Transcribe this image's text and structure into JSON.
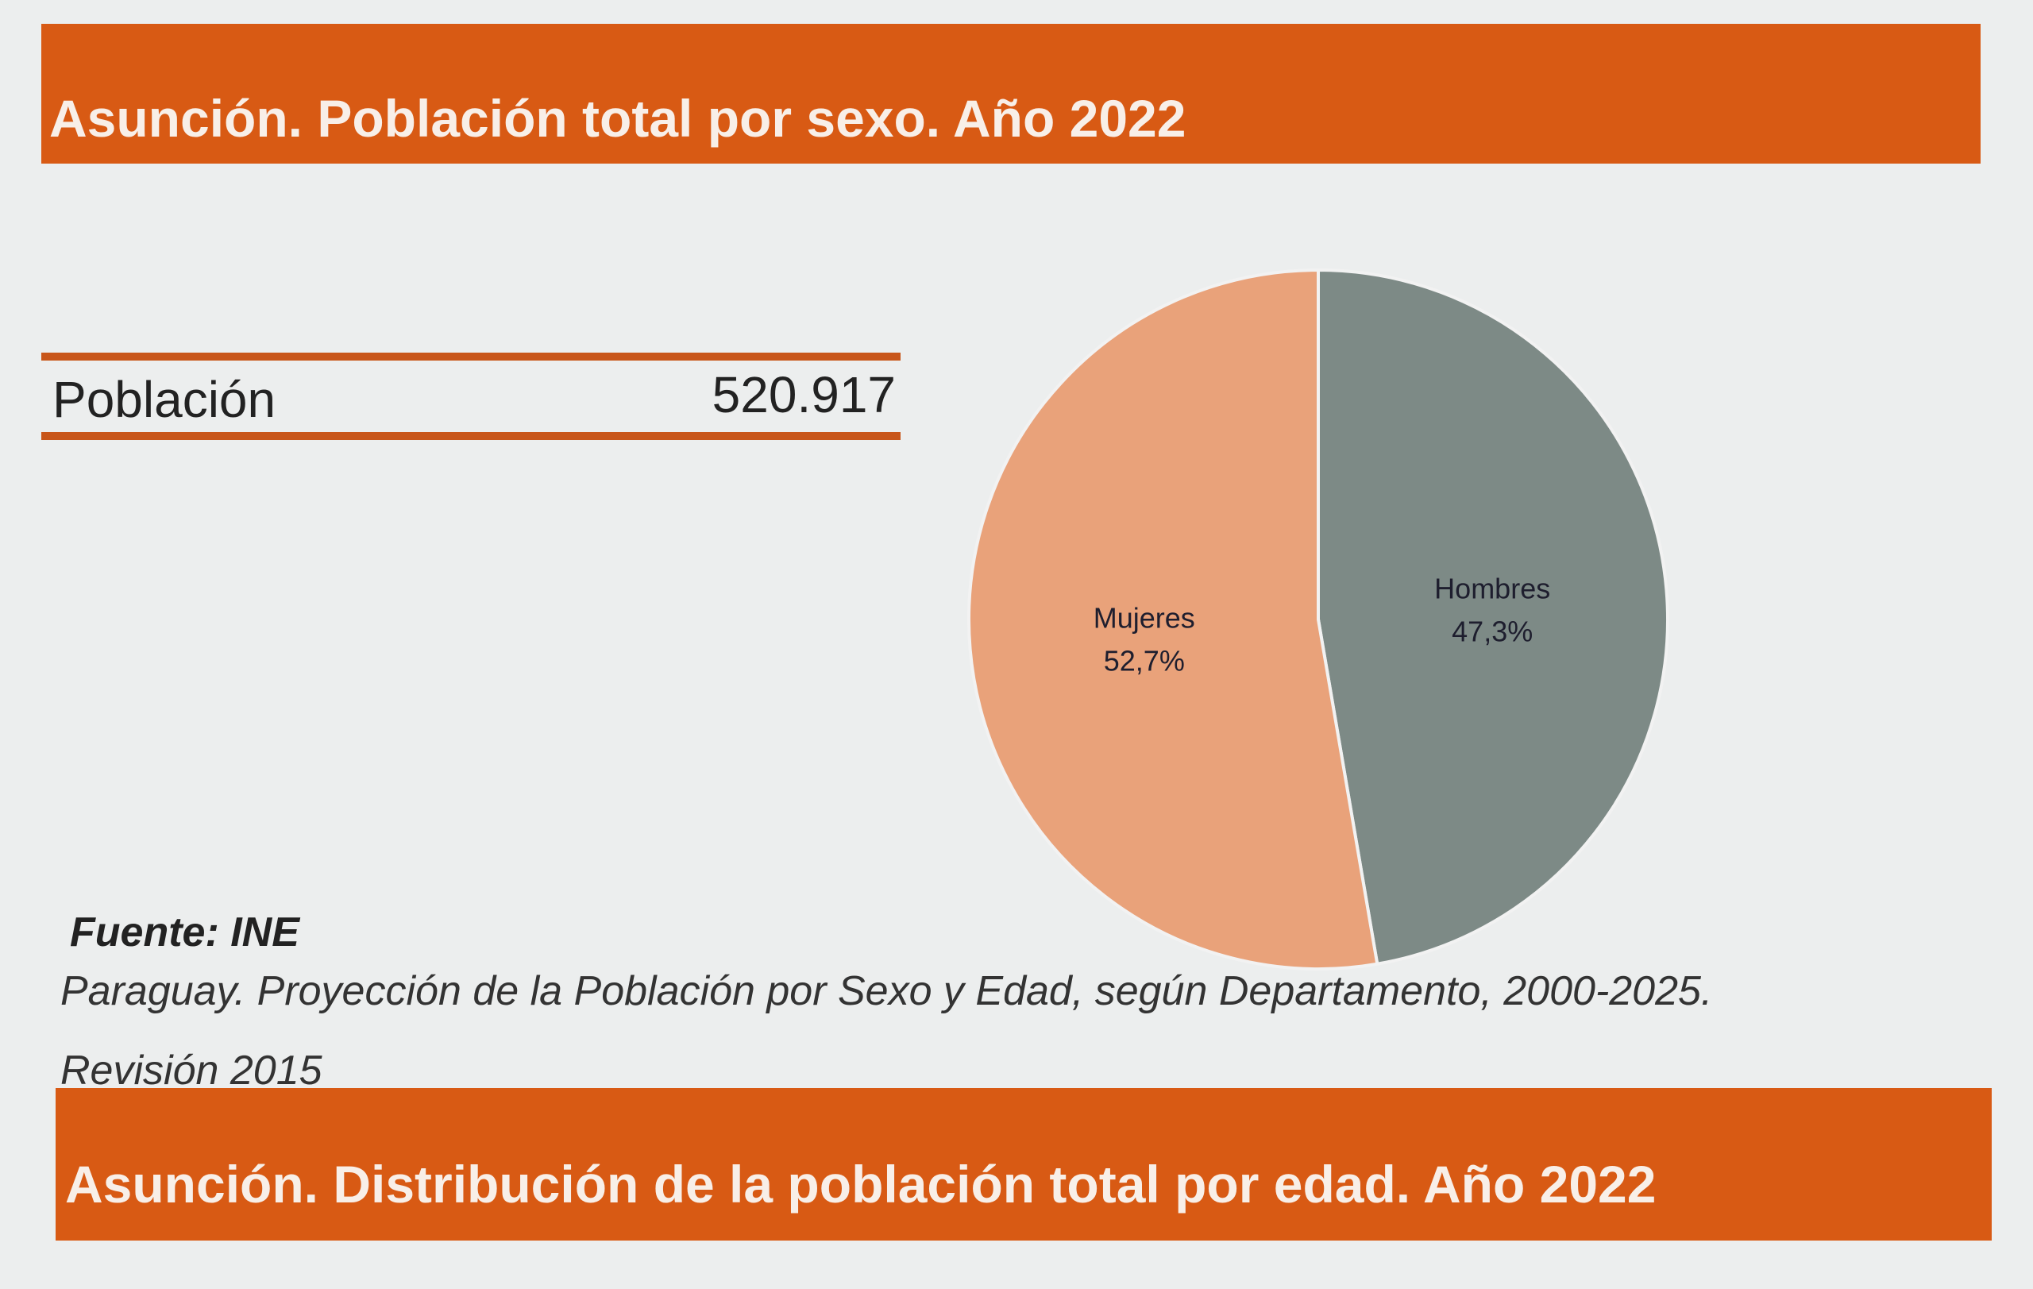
{
  "header": {
    "title": "Asunción. Población total por sexo. Año 2022"
  },
  "summary": {
    "label": "Población",
    "value": "520.917"
  },
  "source": {
    "title": "Fuente: INE",
    "line1": "Paraguay. Proyección de la Población por Sexo y Edad, según Departamento, 2000-2025.",
    "line2": "Revisión 2015"
  },
  "next_section": {
    "title": "Asunción. Distribución de la población total por edad. Año 2022"
  },
  "colors": {
    "banner": "#d85a14",
    "hombres": "#7d8a86",
    "mujeres": "#e9a27a"
  },
  "chart_data": {
    "type": "pie",
    "categories": [
      "Hombres",
      "Mujeres"
    ],
    "values": [
      47.3,
      52.7
    ],
    "labels": [
      "47,3%",
      "52,7%"
    ],
    "colors": [
      "#7d8a86",
      "#e9a27a"
    ]
  }
}
